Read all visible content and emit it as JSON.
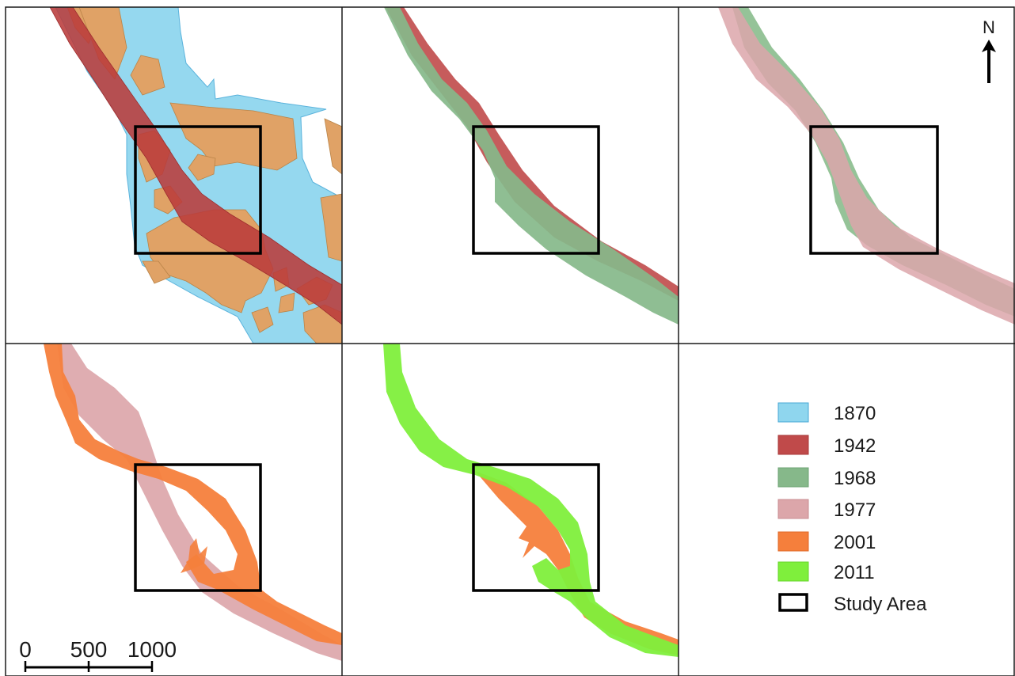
{
  "legend": {
    "items": [
      {
        "label": "1870",
        "color": "#8fd6ee",
        "stroke": "#4aa8d6"
      },
      {
        "label": "1942",
        "color": "#c04a4a",
        "stroke": "#a83a3a"
      },
      {
        "label": "1968",
        "color": "#86b88a",
        "stroke": "#6fa374"
      },
      {
        "label": "1977",
        "color": "#dca6aa",
        "stroke": "#c98e93"
      },
      {
        "label": "2001",
        "color": "#f57f3c",
        "stroke": "#e06a28"
      },
      {
        "label": "2011",
        "color": "#7fef3c",
        "stroke": "#66d62a"
      },
      {
        "label": "Study Area",
        "color": "#ffffff",
        "stroke": "#000000"
      }
    ]
  },
  "north_arrow": {
    "label": "N"
  },
  "scale_bar": {
    "labels": [
      "0",
      "500",
      "1000"
    ]
  },
  "colors": {
    "sand_bar": "#e0a266",
    "channel_1870": "#95d8ef",
    "frame": "#1a1a1a"
  }
}
